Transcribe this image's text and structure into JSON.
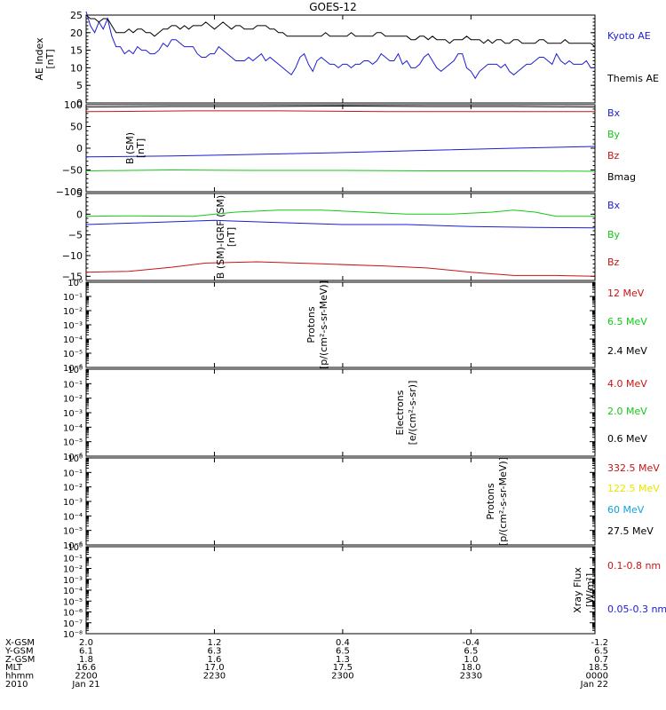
{
  "title": "GOES-12",
  "colors": {
    "black": "#000000",
    "blue": "#1c1cd6",
    "red": "#c81414",
    "green": "#14c814",
    "yellow": "#e6e600",
    "cyan": "#14a0dc"
  },
  "chart_data": [
    {
      "type": "line",
      "ylabel": [
        "AE Index",
        "[nT]"
      ],
      "ylim": [
        0,
        25
      ],
      "yticks": [
        0,
        5,
        10,
        15,
        20,
        25
      ],
      "xlim": [
        0,
        119
      ],
      "legend": [
        {
          "name": "Kyoto AE",
          "color": "blue"
        },
        {
          "name": "Themis AE",
          "color": "black"
        }
      ],
      "series": [
        {
          "name": "Kyoto AE",
          "color": "blue",
          "values": [
            26,
            22,
            20,
            23,
            21,
            24,
            19,
            16,
            16,
            14,
            15,
            14,
            16,
            15,
            15,
            14,
            14,
            15,
            17,
            16,
            18,
            18,
            17,
            16,
            16,
            16,
            14,
            13,
            13,
            14,
            14,
            16,
            15,
            14,
            13,
            12,
            12,
            12,
            13,
            12,
            13,
            14,
            12,
            13,
            12,
            11,
            10,
            9,
            8,
            10,
            13,
            14,
            11,
            9,
            12,
            13,
            12,
            11,
            11,
            10,
            11,
            11,
            10,
            11,
            11,
            12,
            12,
            11,
            12,
            14,
            13,
            12,
            12,
            14,
            11,
            12,
            10,
            10,
            11,
            13,
            14,
            12,
            10,
            9,
            10,
            11,
            12,
            14,
            14,
            10,
            9,
            7,
            9,
            10,
            11,
            11,
            11,
            10,
            11,
            9,
            8,
            9,
            10,
            11,
            11,
            12,
            13,
            13,
            12,
            11,
            14,
            12,
            11,
            12,
            11,
            11,
            11,
            12,
            10,
            10
          ]
        },
        {
          "name": "Themis AE",
          "color": "black",
          "values": [
            25,
            24,
            24,
            23,
            24,
            24,
            22,
            20,
            20,
            20,
            21,
            20,
            21,
            21,
            20,
            20,
            19,
            20,
            21,
            21,
            22,
            22,
            21,
            22,
            21,
            22,
            22,
            22,
            23,
            22,
            21,
            22,
            23,
            22,
            21,
            22,
            22,
            21,
            21,
            21,
            22,
            22,
            22,
            21,
            21,
            20,
            20,
            19,
            19,
            19,
            19,
            19,
            19,
            19,
            19,
            19,
            20,
            19,
            19,
            19,
            19,
            19,
            20,
            19,
            19,
            19,
            19,
            19,
            20,
            20,
            19,
            19,
            19,
            19,
            19,
            19,
            18,
            18,
            19,
            19,
            18,
            19,
            18,
            18,
            18,
            17,
            18,
            18,
            18,
            19,
            18,
            18,
            18,
            17,
            18,
            17,
            18,
            18,
            17,
            17,
            18,
            18,
            17,
            17,
            17,
            17,
            18,
            18,
            17,
            17,
            17,
            17,
            18,
            17,
            17,
            17,
            17,
            17,
            17,
            16
          ]
        }
      ]
    },
    {
      "type": "line",
      "ylabel": [
        "B (SM)",
        "[nT]"
      ],
      "ylim": [
        -100,
        100
      ],
      "yticks": [
        -100,
        -50,
        0,
        50,
        100
      ],
      "xlim": [
        0,
        119
      ],
      "legend": [
        {
          "name": "Bx",
          "color": "blue"
        },
        {
          "name": "By",
          "color": "green"
        },
        {
          "name": "Bz",
          "color": "red"
        },
        {
          "name": "Bmag",
          "color": "black"
        }
      ],
      "series": [
        {
          "name": "Bmag",
          "color": "black",
          "values": [
            [
              0,
              95
            ],
            [
              20,
              96
            ],
            [
              40,
              96
            ],
            [
              60,
              97
            ],
            [
              80,
              96
            ],
            [
              100,
              96
            ],
            [
              119,
              95
            ]
          ]
        },
        {
          "name": "Bz",
          "color": "red",
          "values": [
            [
              0,
              84
            ],
            [
              25,
              86
            ],
            [
              45,
              86
            ],
            [
              70,
              84
            ],
            [
              95,
              84
            ],
            [
              119,
              84
            ]
          ]
        },
        {
          "name": "Bx",
          "color": "blue",
          "values": [
            [
              0,
              -20
            ],
            [
              20,
              -18
            ],
            [
              40,
              -14
            ],
            [
              60,
              -10
            ],
            [
              80,
              -5
            ],
            [
              100,
              0
            ],
            [
              119,
              4
            ]
          ]
        },
        {
          "name": "By",
          "color": "green",
          "values": [
            [
              0,
              -52
            ],
            [
              20,
              -50
            ],
            [
              40,
              -51
            ],
            [
              60,
              -51
            ],
            [
              80,
              -52
            ],
            [
              100,
              -52
            ],
            [
              119,
              -53
            ]
          ]
        }
      ]
    },
    {
      "type": "line",
      "ylabel": [
        "B (SM)-IGRF (SM)",
        "[nT]"
      ],
      "ylim": [
        -16,
        5
      ],
      "yticks": [
        -15,
        -10,
        -5,
        0,
        5
      ],
      "xlim": [
        0,
        119
      ],
      "legend": [
        {
          "name": "Bx",
          "color": "blue"
        },
        {
          "name": "By",
          "color": "green"
        },
        {
          "name": "Bz",
          "color": "red"
        }
      ],
      "series": [
        {
          "name": "By",
          "color": "green",
          "values": [
            [
              0,
              -0.5
            ],
            [
              10,
              -0.4
            ],
            [
              25,
              -0.5
            ],
            [
              35,
              0.5
            ],
            [
              45,
              1
            ],
            [
              55,
              1
            ],
            [
              65,
              0.5
            ],
            [
              75,
              0
            ],
            [
              85,
              0
            ],
            [
              95,
              0.5
            ],
            [
              100,
              1
            ],
            [
              105,
              0.5
            ],
            [
              110,
              -0.5
            ],
            [
              119,
              -0.5
            ]
          ]
        },
        {
          "name": "Bx",
          "color": "blue",
          "values": [
            [
              0,
              -2.5
            ],
            [
              15,
              -2
            ],
            [
              30,
              -1.5
            ],
            [
              45,
              -2
            ],
            [
              60,
              -2.5
            ],
            [
              75,
              -2.5
            ],
            [
              90,
              -3
            ],
            [
              105,
              -3.2
            ],
            [
              119,
              -3.3
            ]
          ]
        },
        {
          "name": "Bz",
          "color": "red",
          "values": [
            [
              0,
              -14
            ],
            [
              10,
              -13.8
            ],
            [
              20,
              -12.8
            ],
            [
              28,
              -11.8
            ],
            [
              40,
              -11.5
            ],
            [
              55,
              -12
            ],
            [
              70,
              -12.5
            ],
            [
              80,
              -13
            ],
            [
              90,
              -14
            ],
            [
              100,
              -14.8
            ],
            [
              110,
              -14.8
            ],
            [
              119,
              -15
            ]
          ]
        }
      ]
    },
    {
      "type": "line",
      "ylabel": [
        "Protons",
        "[p/(cm²-s-sr-MeV)]"
      ],
      "ylim_log": [
        -6,
        0
      ],
      "yticks": [
        "10⁻⁶",
        "10⁻⁵",
        "10⁻⁴",
        "10⁻³",
        "10⁻²",
        "10⁻¹",
        "10⁰"
      ],
      "legend": [
        {
          "name": "12 MeV",
          "color": "red"
        },
        {
          "name": "6.5 MeV",
          "color": "green"
        },
        {
          "name": "2.4 MeV",
          "color": "black"
        }
      ],
      "series": []
    },
    {
      "type": "line",
      "ylabel": [
        "Electrons",
        "[e/(cm²-s-sr)]"
      ],
      "ylim_log": [
        -6,
        0
      ],
      "yticks": [
        "10⁻⁶",
        "10⁻⁵",
        "10⁻⁴",
        "10⁻³",
        "10⁻²",
        "10⁻¹",
        "10⁰"
      ],
      "legend": [
        {
          "name": "4.0 MeV",
          "color": "red"
        },
        {
          "name": "2.0 MeV",
          "color": "green"
        },
        {
          "name": "0.6 MeV",
          "color": "black"
        }
      ],
      "series": []
    },
    {
      "type": "line",
      "ylabel": [
        "Protons",
        "[p/(cm²-s-sr-MeV)]"
      ],
      "ylim_log": [
        -6,
        0
      ],
      "yticks": [
        "10⁻⁶",
        "10⁻⁵",
        "10⁻⁴",
        "10⁻³",
        "10⁻²",
        "10⁻¹",
        "10⁰"
      ],
      "legend": [
        {
          "name": "332.5 MeV",
          "color": "red"
        },
        {
          "name": "122.5 MeV",
          "color": "yellow"
        },
        {
          "name": "60 MeV",
          "color": "cyan"
        },
        {
          "name": "27.5 MeV",
          "color": "black"
        }
      ],
      "series": []
    },
    {
      "type": "line",
      "ylabel": [
        "Xray Flux",
        "[W/m²]"
      ],
      "ylim_log": [
        -8,
        0
      ],
      "yticks": [
        "10⁻⁸",
        "10⁻⁷",
        "10⁻⁶",
        "10⁻⁵",
        "10⁻⁴",
        "10⁻³",
        "10⁻²",
        "10⁻¹",
        "10⁰"
      ],
      "legend": [
        {
          "name": "0.1-0.8 nm",
          "color": "red"
        },
        {
          "name": "0.05-0.3 nm",
          "color": "blue"
        }
      ],
      "series": []
    }
  ],
  "x_axis": {
    "xlim": [
      0,
      119
    ],
    "tick_positions": [
      0,
      30,
      60,
      90,
      119
    ],
    "rows": [
      {
        "label": "X-GSM",
        "values": [
          "2.0",
          "1.2",
          "0.4",
          "-0.4",
          "-1.2"
        ]
      },
      {
        "label": "Y-GSM",
        "values": [
          "6.1",
          "6.3",
          "6.5",
          "6.5",
          "6.5"
        ]
      },
      {
        "label": "Z-GSM",
        "values": [
          "1.8",
          "1.6",
          "1.3",
          "1.0",
          "0.7"
        ]
      },
      {
        "label": "MLT",
        "values": [
          "16.6",
          "17.0",
          "17.5",
          "18.0",
          "18.5"
        ]
      },
      {
        "label": "hhmm",
        "values": [
          "2200",
          "2230",
          "2300",
          "2330",
          "0000"
        ]
      },
      {
        "label": "2010",
        "values": [
          "Jan 21",
          "",
          "",
          "",
          "Jan 22"
        ]
      }
    ]
  }
}
